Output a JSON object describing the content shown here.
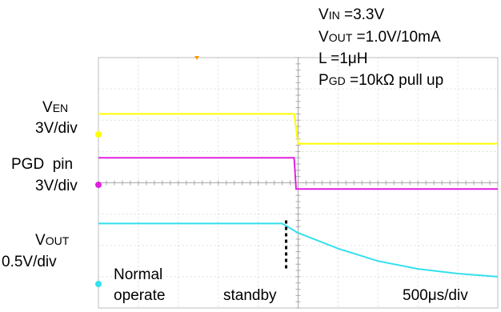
{
  "conditions": {
    "vin": {
      "symbol": "V",
      "sub": "IN",
      "value": "=3.3V"
    },
    "vout": {
      "symbol": "V",
      "sub": "OUT",
      "value": "=1.0V/10mA"
    },
    "inductor": "L =1μH",
    "pgd": {
      "symbol": "P",
      "sub": "GD",
      "value": "=10kΩ pull up"
    }
  },
  "channels": {
    "ven": {
      "symbol": "V",
      "sub": "EN",
      "scale": "3V/div",
      "color": "#ffff00"
    },
    "pgd": {
      "name": "PGD  pin",
      "scale": "3V/div",
      "color": "#e020e0"
    },
    "vout": {
      "symbol": "V",
      "sub": "OUT",
      "scale": "0.5V/div",
      "color": "#33e0ee"
    }
  },
  "annotations": {
    "normal_line1": "Normal",
    "normal_line2": "operate",
    "standby": "standby",
    "timebase": "500μs/div"
  },
  "chart_data": {
    "type": "line",
    "x_unit": "div",
    "xlim": [
      0,
      10
    ],
    "ylim": [
      -4,
      4
    ],
    "series": [
      {
        "name": "VEN",
        "color": "#ffff00",
        "x": [
          0,
          1.0,
          1.0,
          2.0,
          4.9,
          5.0,
          10
        ],
        "y": [
          2.2,
          2.2,
          2.2,
          2.2,
          2.2,
          1.25,
          1.25
        ]
      },
      {
        "name": "PGD",
        "color": "#e020e0",
        "x": [
          0,
          1.0,
          1.0,
          2.0,
          4.9,
          4.95,
          10
        ],
        "y": [
          0.8,
          0.8,
          0.8,
          0.8,
          0.8,
          -0.2,
          -0.2
        ]
      },
      {
        "name": "VOUT",
        "color": "#33e0ee",
        "x": [
          0,
          1.0,
          2.0,
          3.0,
          4.6,
          5.0,
          6.0,
          7.0,
          8.0,
          9.0,
          10
        ],
        "y": [
          -1.3,
          -1.3,
          -1.3,
          -1.3,
          -1.3,
          -1.6,
          -2.1,
          -2.5,
          -2.75,
          -2.9,
          -3.0
        ]
      }
    ],
    "markers": {
      "x": 4.7,
      "y_from": -1.2,
      "y_to": -2.8
    }
  }
}
